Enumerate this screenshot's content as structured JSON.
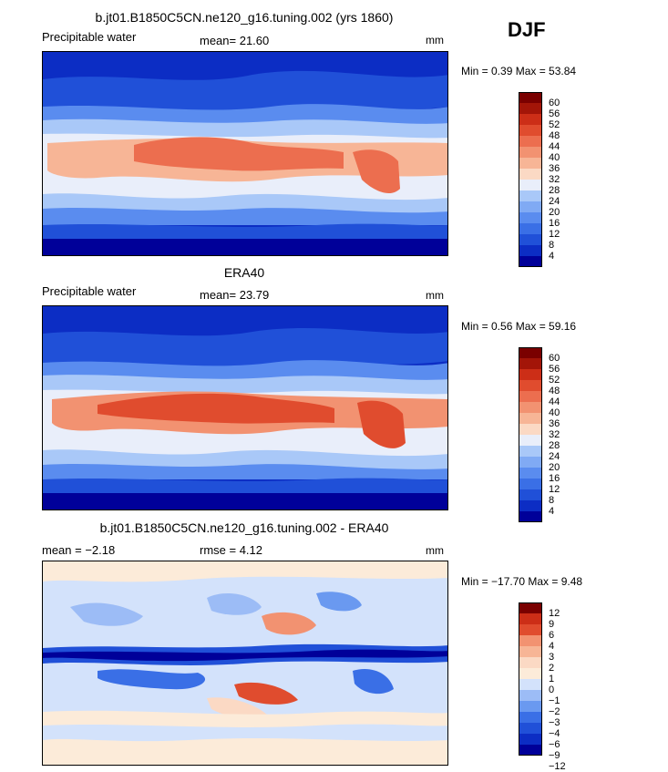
{
  "season": "DJF",
  "colors": {
    "abs": [
      "#000099",
      "#0c2dc4",
      "#2050d8",
      "#3a6fe6",
      "#5a8cef",
      "#80aaf4",
      "#a9c8f8",
      "#e9eefa",
      "#fbd9c4",
      "#f7b596",
      "#f29271",
      "#ec6e4f",
      "#e04c2e",
      "#cc2e17",
      "#a31508",
      "#7a0000"
    ],
    "diff": [
      "#000099",
      "#0c2dc4",
      "#2050d8",
      "#3a6fe6",
      "#6a99f0",
      "#9cbcf6",
      "#d3e2fb",
      "#fcebd9",
      "#fbd9c4",
      "#f7b596",
      "#f29271",
      "#e04c2e",
      "#cc2e17",
      "#7a0000"
    ]
  },
  "panels": [
    {
      "title": "b.jt01.B1850C5CN.ne120_g16.tuning.002 (yrs 1860)",
      "left_label": "Precipitable water",
      "center_label": "mean=  21.60",
      "units": "mm",
      "minmax": "Min =   0.39 Max =  53.84",
      "colorbar": [
        "60",
        "56",
        "52",
        "48",
        "44",
        "40",
        "36",
        "32",
        "28",
        "24",
        "20",
        "16",
        "12",
        "8",
        "4"
      ]
    },
    {
      "title": "ERA40",
      "left_label": "Precipitable water",
      "center_label": "mean=  23.79",
      "units": "mm",
      "minmax": "Min =   0.56 Max =  59.16",
      "colorbar": [
        "60",
        "56",
        "52",
        "48",
        "44",
        "40",
        "36",
        "32",
        "28",
        "24",
        "20",
        "16",
        "12",
        "8",
        "4"
      ]
    },
    {
      "title": "b.jt01.B1850C5CN.ne120_g16.tuning.002 - ERA40",
      "left_label": "mean =  −2.18",
      "center_label": "rmse =   4.12",
      "units": "mm",
      "minmax": "Min = −17.70 Max =   9.48",
      "colorbar": [
        "12",
        "9",
        "6",
        "4",
        "3",
        "2",
        "1",
        "0",
        "−1",
        "−2",
        "−3",
        "−4",
        "−6",
        "−9",
        "−12"
      ]
    }
  ]
}
